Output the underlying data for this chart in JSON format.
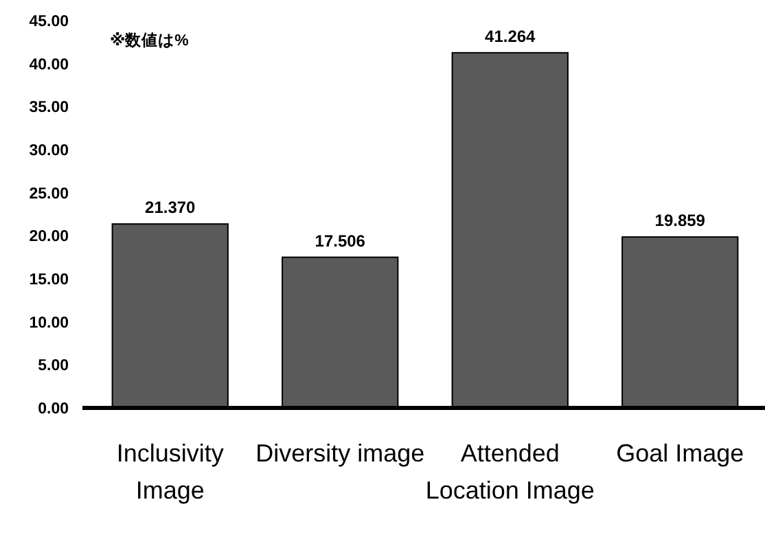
{
  "chart_data": {
    "type": "bar",
    "categories": [
      "Inclusivity Image",
      "Diversity image",
      "Attended Location Image",
      "Goal Image"
    ],
    "values": [
      21.37,
      17.506,
      41.264,
      19.859
    ],
    "color": "#5a5a5a",
    "value_labels": [
      "21.370",
      "17.506",
      "41.264",
      "19.859"
    ],
    "ylim": [
      0,
      45
    ],
    "yticks": [
      {
        "value": 0,
        "label": "0.00"
      },
      {
        "value": 5,
        "label": "5.00"
      },
      {
        "value": 10,
        "label": "10.00"
      },
      {
        "value": 15,
        "label": "15.00"
      },
      {
        "value": 20,
        "label": "20.00"
      },
      {
        "value": 25,
        "label": "25.00"
      },
      {
        "value": 30,
        "label": "30.00"
      },
      {
        "value": 35,
        "label": "35.00"
      },
      {
        "value": 40,
        "label": "40.00"
      },
      {
        "value": 45,
        "label": "45.00"
      }
    ],
    "annotations": [
      "※数値は%"
    ],
    "grid": false
  }
}
